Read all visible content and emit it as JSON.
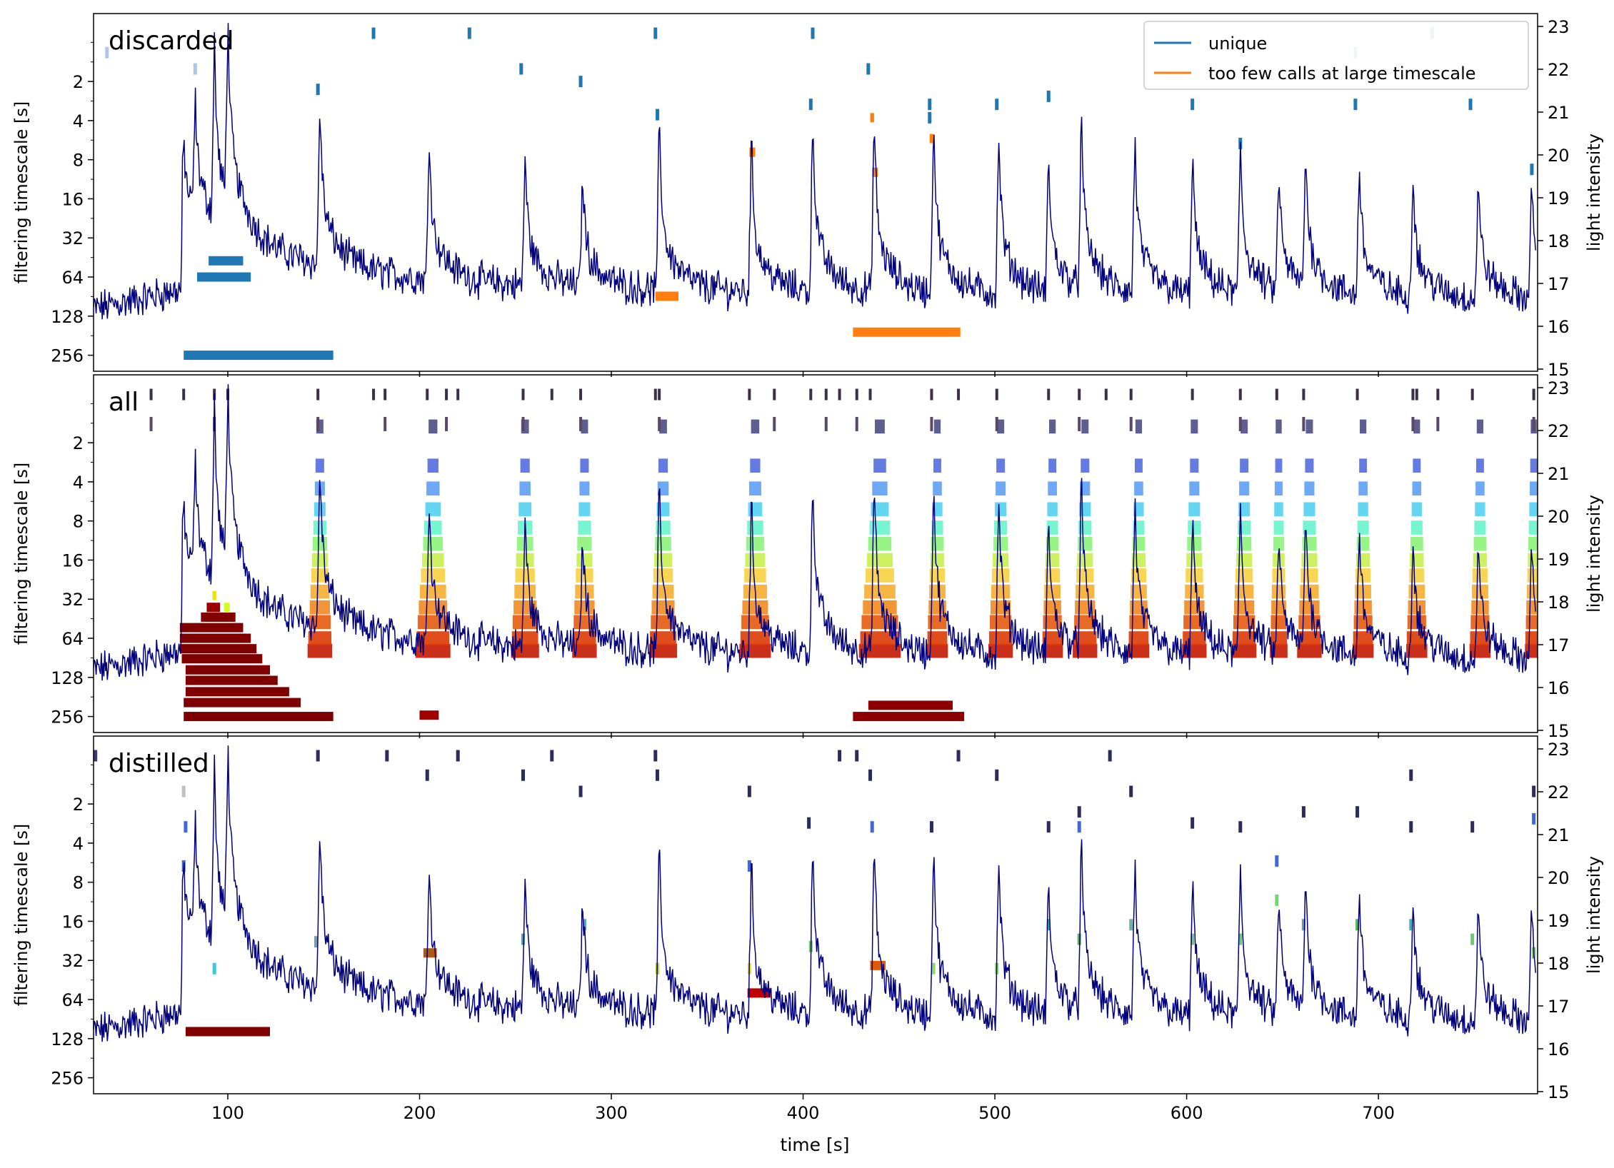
{
  "chart_data": {
    "type": "line",
    "xlabel": "time [s]",
    "x_ticks": [
      100,
      200,
      300,
      400,
      500,
      600,
      700
    ],
    "xlim": [
      30,
      783
    ],
    "left_axis_label": "filtering timescale [s]",
    "left_axis_scale": "log2",
    "left_ticks": [
      2,
      4,
      8,
      16,
      32,
      64,
      128,
      256
    ],
    "right_axis_label": "light intensity",
    "right_ticks": [
      15,
      16,
      17,
      18,
      19,
      20,
      21,
      22,
      23
    ],
    "right_ylim": [
      14.95,
      23.3
    ],
    "trace_color": "#00007f",
    "trace": {
      "baseline_start": 16.4,
      "onset_time": 76,
      "onset_level": 18.2,
      "peaks": [
        {
          "t": 77,
          "h": 20.5
        },
        {
          "t": 83,
          "h": 21.1
        },
        {
          "t": 93,
          "h": 22.4
        },
        {
          "t": 100,
          "h": 22.6
        },
        {
          "t": 148,
          "h": 21.6
        },
        {
          "t": 205,
          "h": 20.8
        },
        {
          "t": 255,
          "h": 20.3
        },
        {
          "t": 285,
          "h": 19.8
        },
        {
          "t": 325,
          "h": 21.2
        },
        {
          "t": 373,
          "h": 20.7
        },
        {
          "t": 405,
          "h": 21.3
        },
        {
          "t": 437,
          "h": 21.2
        },
        {
          "t": 468,
          "h": 21.2
        },
        {
          "t": 502,
          "h": 20.8
        },
        {
          "t": 528,
          "h": 20.2
        },
        {
          "t": 545,
          "h": 21.1
        },
        {
          "t": 573,
          "h": 20.7
        },
        {
          "t": 603,
          "h": 20.3
        },
        {
          "t": 628,
          "h": 20.5
        },
        {
          "t": 648,
          "h": 19.8
        },
        {
          "t": 662,
          "h": 20.1
        },
        {
          "t": 690,
          "h": 20.1
        },
        {
          "t": 718,
          "h": 19.8
        },
        {
          "t": 752,
          "h": 19.7
        },
        {
          "t": 780,
          "h": 19.6
        }
      ]
    },
    "panels": [
      {
        "label": "discarded",
        "legend": [
          {
            "label": "unique",
            "color": "#1f77b4"
          },
          {
            "label": "too few calls at large timescale",
            "color": "#ff7f0e"
          }
        ],
        "bars": [
          {
            "t0": 77,
            "t1": 155,
            "scale": 256,
            "color": "#1f77b4"
          },
          {
            "t0": 84,
            "t1": 112,
            "scale": 64,
            "color": "#1f77b4"
          },
          {
            "t0": 90,
            "t1": 108,
            "scale": 48,
            "color": "#1f77b4"
          },
          {
            "t0": 323,
            "t1": 335,
            "scale": 90,
            "color": "#ff7f0e"
          },
          {
            "t0": 426,
            "t1": 482,
            "scale": 170,
            "color": "#ff7f0e"
          },
          {
            "t0": 372,
            "t1": 375,
            "scale": 7,
            "color": "#ff7f0e"
          },
          {
            "t0": 435,
            "t1": 437,
            "scale": 3.8,
            "color": "#ff7f0e"
          },
          {
            "t0": 436,
            "t1": 439,
            "scale": 10,
            "color": "#ff7f0e"
          },
          {
            "t0": 466,
            "t1": 468,
            "scale": 5.5,
            "color": "#ff7f0e"
          }
        ],
        "ticks": [
          {
            "t": 37,
            "scale": 1.2,
            "color": "#aec7e8"
          },
          {
            "t": 83,
            "scale": 1.6,
            "color": "#aec7e8"
          },
          {
            "t": 176,
            "scale": 0.85,
            "color": "#1f77b4"
          },
          {
            "t": 226,
            "scale": 0.85,
            "color": "#1f77b4"
          },
          {
            "t": 253,
            "scale": 1.6,
            "color": "#1f77b4"
          },
          {
            "t": 284,
            "scale": 2.0,
            "color": "#1f77b4"
          },
          {
            "t": 323,
            "scale": 0.85,
            "color": "#1f77b4"
          },
          {
            "t": 324,
            "scale": 3.6,
            "color": "#1f77b4"
          },
          {
            "t": 405,
            "scale": 0.85,
            "color": "#1f77b4"
          },
          {
            "t": 404,
            "scale": 3.0,
            "color": "#1f77b4"
          },
          {
            "t": 434,
            "scale": 1.6,
            "color": "#1f77b4"
          },
          {
            "t": 466,
            "scale": 3.0,
            "color": "#1f77b4"
          },
          {
            "t": 466,
            "scale": 3.8,
            "color": "#1f77b4"
          },
          {
            "t": 501,
            "scale": 3.0,
            "color": "#1f77b4"
          },
          {
            "t": 528,
            "scale": 2.6,
            "color": "#1f77b4"
          },
          {
            "t": 147,
            "scale": 2.3,
            "color": "#1f77b4"
          },
          {
            "t": 603,
            "scale": 3.0,
            "color": "#1f77b4"
          },
          {
            "t": 628,
            "scale": 6.0,
            "color": "#1f77b4"
          },
          {
            "t": 688,
            "scale": 1.2,
            "color": "#aec7e8"
          },
          {
            "t": 688,
            "scale": 3.0,
            "color": "#1f77b4"
          },
          {
            "t": 728,
            "scale": 0.85,
            "color": "#aec7e8"
          },
          {
            "t": 748,
            "scale": 3.0,
            "color": "#1f77b4"
          },
          {
            "t": 780,
            "scale": 9.5,
            "color": "#1f77b4"
          }
        ]
      },
      {
        "label": "all",
        "legend": [],
        "bars": [
          {
            "t0": 77,
            "t1": 155,
            "scale": 256,
            "color": "#7f0000"
          },
          {
            "t0": 77,
            "t1": 138,
            "scale": 200,
            "color": "#7f0000"
          },
          {
            "t0": 78,
            "t1": 132,
            "scale": 165,
            "color": "#7f0000"
          },
          {
            "t0": 78,
            "t1": 126,
            "scale": 135,
            "color": "#7f0000"
          },
          {
            "t0": 78,
            "t1": 122,
            "scale": 112,
            "color": "#7f0000"
          },
          {
            "t0": 76,
            "t1": 118,
            "scale": 92,
            "color": "#7f0000"
          },
          {
            "t0": 75,
            "t1": 115,
            "scale": 77,
            "color": "#7f0000"
          },
          {
            "t0": 75,
            "t1": 112,
            "scale": 64,
            "color": "#800000"
          },
          {
            "t0": 75,
            "t1": 108,
            "scale": 53,
            "color": "#800000"
          },
          {
            "t0": 86,
            "t1": 104,
            "scale": 44,
            "color": "#800000"
          },
          {
            "t0": 89,
            "t1": 96,
            "scale": 37,
            "color": "#9a0000"
          },
          {
            "t0": 92,
            "t1": 94,
            "scale": 30,
            "color": "#eae314"
          },
          {
            "t0": 98,
            "t1": 101,
            "scale": 37,
            "color": "#d6f72a"
          },
          {
            "t0": 200,
            "t1": 210,
            "scale": 250,
            "color": "#a00000"
          },
          {
            "t0": 426,
            "t1": 484,
            "scale": 256,
            "color": "#8c0000"
          },
          {
            "t0": 434,
            "t1": 478,
            "scale": 210,
            "color": "#8c0000"
          }
        ],
        "towers": [
          {
            "t": 148,
            "w": 12
          },
          {
            "t": 207,
            "w": 18
          },
          {
            "t": 255,
            "w": 14
          },
          {
            "t": 286,
            "w": 12
          },
          {
            "t": 327,
            "w": 14
          },
          {
            "t": 375,
            "w": 16
          },
          {
            "t": 440,
            "w": 22
          },
          {
            "t": 470,
            "w": 10
          },
          {
            "t": 503,
            "w": 12
          },
          {
            "t": 530,
            "w": 10
          },
          {
            "t": 547,
            "w": 12
          },
          {
            "t": 575,
            "w": 10
          },
          {
            "t": 604,
            "w": 12
          },
          {
            "t": 630,
            "w": 12
          },
          {
            "t": 648,
            "w": 8
          },
          {
            "t": 664,
            "w": 12
          },
          {
            "t": 692,
            "w": 10
          },
          {
            "t": 720,
            "w": 10
          },
          {
            "t": 753,
            "w": 10
          },
          {
            "t": 781,
            "w": 8
          }
        ],
        "dark_ticks": [
          60,
          77,
          93,
          100,
          147,
          176,
          182,
          204,
          214,
          220,
          254,
          269,
          284,
          323,
          325,
          372,
          385,
          404,
          412,
          419,
          428,
          435,
          467,
          481,
          501,
          528,
          544,
          558,
          571,
          603,
          628,
          647,
          661,
          689,
          718,
          720,
          731,
          749,
          781
        ]
      },
      {
        "label": "distilled",
        "legend": [],
        "bars": [
          {
            "t0": 78,
            "t1": 122,
            "scale": 113,
            "color": "#7f0000"
          },
          {
            "t0": 371,
            "t1": 383,
            "scale": 57,
            "color": "#c00000"
          },
          {
            "t0": 202,
            "t1": 209,
            "scale": 28,
            "color": "#b05a10"
          },
          {
            "t0": 435,
            "t1": 443,
            "scale": 35,
            "color": "#df5a08"
          }
        ],
        "ticks": [
          {
            "t": 31,
            "scale": 0.85,
            "color": "#3b3b6e"
          },
          {
            "t": 77,
            "scale": 1.6,
            "color": "#c0c0c0"
          },
          {
            "t": 78,
            "scale": 3.0,
            "color": "#3c68e0"
          },
          {
            "t": 77,
            "scale": 6.0,
            "color": "#3c68e0"
          },
          {
            "t": 93,
            "scale": 37,
            "color": "#3cc8d8"
          },
          {
            "t": 147,
            "scale": 0.85,
            "color": "#2c2c5c"
          },
          {
            "t": 146,
            "scale": 23,
            "color": "#7aa0a0"
          },
          {
            "t": 183,
            "scale": 0.85,
            "color": "#2c2c5c"
          },
          {
            "t": 204,
            "scale": 1.2,
            "color": "#2c2c5c"
          },
          {
            "t": 220,
            "scale": 0.85,
            "color": "#2c2c5c"
          },
          {
            "t": 254,
            "scale": 1.2,
            "color": "#2c2c5c"
          },
          {
            "t": 254,
            "scale": 22,
            "color": "#5f9fb0"
          },
          {
            "t": 269,
            "scale": 0.85,
            "color": "#2c2c5c"
          },
          {
            "t": 284,
            "scale": 1.6,
            "color": "#2c2c5c"
          },
          {
            "t": 286,
            "scale": 17,
            "color": "#5f9fb0"
          },
          {
            "t": 323,
            "scale": 0.85,
            "color": "#2c2c5c"
          },
          {
            "t": 324,
            "scale": 1.2,
            "color": "#2c2c5c"
          },
          {
            "t": 324,
            "scale": 37,
            "color": "#b8d020"
          },
          {
            "t": 372,
            "scale": 1.6,
            "color": "#2c2c5c"
          },
          {
            "t": 372,
            "scale": 6.0,
            "color": "#3c68e0"
          },
          {
            "t": 372,
            "scale": 37,
            "color": "#e8e020"
          },
          {
            "t": 403,
            "scale": 2.8,
            "color": "#2c2c5c"
          },
          {
            "t": 404,
            "scale": 25,
            "color": "#70c870"
          },
          {
            "t": 419,
            "scale": 0.85,
            "color": "#2c2c5c"
          },
          {
            "t": 428,
            "scale": 0.85,
            "color": "#2c2c5c"
          },
          {
            "t": 435,
            "scale": 1.2,
            "color": "#2c2c5c"
          },
          {
            "t": 436,
            "scale": 3.0,
            "color": "#3c68e0"
          },
          {
            "t": 467,
            "scale": 3.0,
            "color": "#2c2c5c"
          },
          {
            "t": 468,
            "scale": 37,
            "color": "#90d860"
          },
          {
            "t": 481,
            "scale": 0.85,
            "color": "#2c2c5c"
          },
          {
            "t": 501,
            "scale": 1.2,
            "color": "#2c2c5c"
          },
          {
            "t": 501,
            "scale": 37,
            "color": "#90d860"
          },
          {
            "t": 528,
            "scale": 3.0,
            "color": "#2c2c5c"
          },
          {
            "t": 528,
            "scale": 17,
            "color": "#40a0a0"
          },
          {
            "t": 544,
            "scale": 2.3,
            "color": "#2c2c5c"
          },
          {
            "t": 544,
            "scale": 3.0,
            "color": "#3c68e0"
          },
          {
            "t": 544,
            "scale": 22,
            "color": "#60b060"
          },
          {
            "t": 560,
            "scale": 0.85,
            "color": "#2c2c5c"
          },
          {
            "t": 571,
            "scale": 1.6,
            "color": "#2c2c5c"
          },
          {
            "t": 571,
            "scale": 17,
            "color": "#70b0a0"
          },
          {
            "t": 603,
            "scale": 2.8,
            "color": "#2c2c5c"
          },
          {
            "t": 603,
            "scale": 22,
            "color": "#70c870"
          },
          {
            "t": 628,
            "scale": 3.0,
            "color": "#2c2c5c"
          },
          {
            "t": 628,
            "scale": 22,
            "color": "#70c870"
          },
          {
            "t": 647,
            "scale": 5.5,
            "color": "#3c68e0"
          },
          {
            "t": 647,
            "scale": 11,
            "color": "#70d870"
          },
          {
            "t": 661,
            "scale": 2.3,
            "color": "#2c2c5c"
          },
          {
            "t": 661,
            "scale": 17,
            "color": "#60a0a0"
          },
          {
            "t": 689,
            "scale": 2.3,
            "color": "#2c2c5c"
          },
          {
            "t": 689,
            "scale": 17,
            "color": "#60b060"
          },
          {
            "t": 717,
            "scale": 1.2,
            "color": "#2c2c5c"
          },
          {
            "t": 717,
            "scale": 3.0,
            "color": "#2c2c5c"
          },
          {
            "t": 717,
            "scale": 17,
            "color": "#40b0c0"
          },
          {
            "t": 749,
            "scale": 3.0,
            "color": "#2c2c5c"
          },
          {
            "t": 749,
            "scale": 22,
            "color": "#70c870"
          },
          {
            "t": 781,
            "scale": 1.6,
            "color": "#2c2c5c"
          },
          {
            "t": 781,
            "scale": 2.6,
            "color": "#3c68e0"
          },
          {
            "t": 781,
            "scale": 28,
            "color": "#70c870"
          }
        ]
      }
    ]
  }
}
